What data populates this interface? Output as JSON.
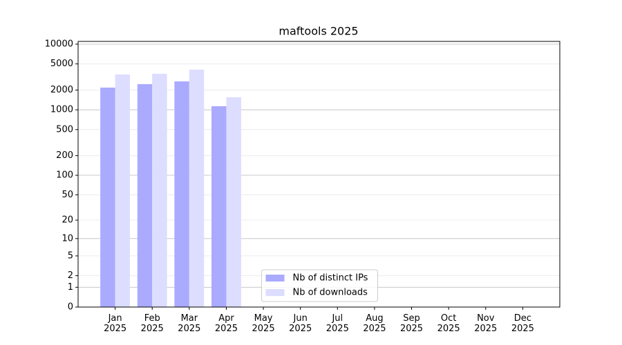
{
  "chart_data": {
    "type": "bar",
    "title": "maftools 2025",
    "categories": [
      "Jan\n2025",
      "Feb\n2025",
      "Mar\n2025",
      "Apr\n2025",
      "May\n2025",
      "Jun\n2025",
      "Jul\n2025",
      "Aug\n2025",
      "Sep\n2025",
      "Oct\n2025",
      "Nov\n2025",
      "Dec\n2025"
    ],
    "series": [
      {
        "name": "Nb of distinct IPs",
        "color": "#aaaaff",
        "values": [
          2180,
          2460,
          2710,
          1135,
          null,
          null,
          null,
          null,
          null,
          null,
          null,
          null
        ]
      },
      {
        "name": "Nb of downloads",
        "color": "#ddddff",
        "values": [
          3450,
          3540,
          4090,
          1555,
          null,
          null,
          null,
          null,
          null,
          null,
          null,
          null
        ]
      }
    ],
    "yscale": "log",
    "ylim": [
      0,
      11000
    ],
    "yticks": [
      0,
      1,
      2,
      5,
      10,
      20,
      50,
      100,
      200,
      500,
      1000,
      2000,
      5000,
      10000
    ],
    "grid": true,
    "legend": "lower center"
  }
}
